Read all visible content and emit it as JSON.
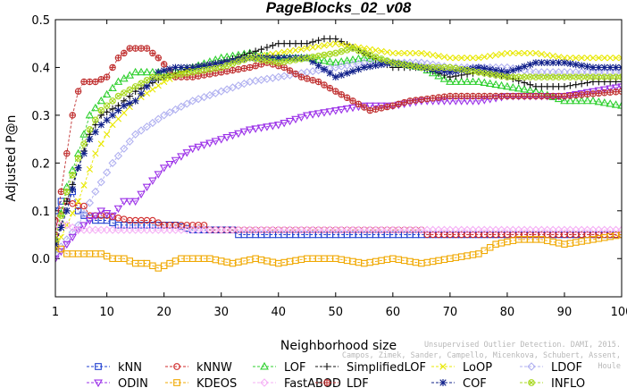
{
  "credit_lines": [
    "Unsupervised Outlier Detection. DAMI, 2015.",
    "Campos, Zimek, Sander, Campello, Micenkova, Schubert, Assent, Houle"
  ],
  "chart_data": {
    "type": "line",
    "title": "PageBlocks_02_v08",
    "xlabel": "Neighborhood size",
    "ylabel": "Adjusted P@n",
    "xlim": [
      1,
      100
    ],
    "ylim": [
      -0.08,
      0.5
    ],
    "xticks": [
      1,
      10,
      20,
      30,
      40,
      50,
      60,
      70,
      80,
      90,
      100
    ],
    "yticks": [
      0.0,
      0.1,
      0.2,
      0.3,
      0.4,
      0.5
    ],
    "ytick_labels": [
      "0.0",
      "0.1",
      "0.2",
      "0.3",
      "0.4",
      "0.5"
    ],
    "legend_position": "bottom",
    "series": [
      {
        "name": "kNN",
        "color": "#1f3fd0",
        "marker": "square",
        "points": [
          [
            1,
            0.1
          ],
          [
            2,
            0.12
          ],
          [
            3,
            0.12
          ],
          [
            4,
            0.14
          ],
          [
            5,
            0.1
          ],
          [
            6,
            0.09
          ],
          [
            8,
            0.08
          ],
          [
            10,
            0.08
          ],
          [
            12,
            0.07
          ],
          [
            20,
            0.07
          ],
          [
            22,
            0.07
          ],
          [
            25,
            0.06
          ],
          [
            32,
            0.06
          ],
          [
            33,
            0.05
          ],
          [
            100,
            0.05
          ]
        ]
      },
      {
        "name": "kNNW",
        "color": "#d02a2a",
        "marker": "circle",
        "points": [
          [
            1,
            0.08
          ],
          [
            3,
            0.12
          ],
          [
            5,
            0.11
          ],
          [
            6,
            0.11
          ],
          [
            7,
            0.09
          ],
          [
            10,
            0.09
          ],
          [
            14,
            0.08
          ],
          [
            18,
            0.08
          ],
          [
            20,
            0.07
          ],
          [
            27,
            0.07
          ],
          [
            28,
            0.06
          ],
          [
            65,
            0.06
          ],
          [
            66,
            0.05
          ],
          [
            100,
            0.05
          ]
        ]
      },
      {
        "name": "LOF",
        "color": "#2fd02f",
        "marker": "triangle-up",
        "points": [
          [
            1,
            0.04
          ],
          [
            3,
            0.15
          ],
          [
            5,
            0.22
          ],
          [
            7,
            0.3
          ],
          [
            9,
            0.33
          ],
          [
            12,
            0.37
          ],
          [
            15,
            0.39
          ],
          [
            20,
            0.39
          ],
          [
            25,
            0.4
          ],
          [
            30,
            0.42
          ],
          [
            35,
            0.43
          ],
          [
            40,
            0.42
          ],
          [
            45,
            0.42
          ],
          [
            50,
            0.41
          ],
          [
            55,
            0.42
          ],
          [
            60,
            0.41
          ],
          [
            65,
            0.4
          ],
          [
            70,
            0.37
          ],
          [
            75,
            0.37
          ],
          [
            80,
            0.36
          ],
          [
            85,
            0.35
          ],
          [
            90,
            0.33
          ],
          [
            95,
            0.33
          ],
          [
            100,
            0.32
          ]
        ]
      },
      {
        "name": "SimplifiedLOF",
        "color": "#111111",
        "marker": "plus",
        "points": [
          [
            1,
            0.02
          ],
          [
            3,
            0.12
          ],
          [
            5,
            0.19
          ],
          [
            7,
            0.26
          ],
          [
            9,
            0.3
          ],
          [
            12,
            0.32
          ],
          [
            15,
            0.35
          ],
          [
            20,
            0.38
          ],
          [
            25,
            0.4
          ],
          [
            30,
            0.41
          ],
          [
            35,
            0.43
          ],
          [
            40,
            0.45
          ],
          [
            45,
            0.45
          ],
          [
            48,
            0.46
          ],
          [
            50,
            0.46
          ],
          [
            55,
            0.43
          ],
          [
            60,
            0.4
          ],
          [
            65,
            0.4
          ],
          [
            70,
            0.38
          ],
          [
            75,
            0.39
          ],
          [
            80,
            0.38
          ],
          [
            85,
            0.36
          ],
          [
            90,
            0.36
          ],
          [
            95,
            0.37
          ],
          [
            100,
            0.37
          ]
        ]
      },
      {
        "name": "LoOP",
        "color": "#e8e800",
        "marker": "cross",
        "points": [
          [
            1,
            0.02
          ],
          [
            5,
            0.12
          ],
          [
            8,
            0.22
          ],
          [
            11,
            0.28
          ],
          [
            15,
            0.33
          ],
          [
            20,
            0.37
          ],
          [
            25,
            0.4
          ],
          [
            30,
            0.41
          ],
          [
            35,
            0.42
          ],
          [
            40,
            0.43
          ],
          [
            45,
            0.44
          ],
          [
            50,
            0.45
          ],
          [
            55,
            0.44
          ],
          [
            60,
            0.43
          ],
          [
            65,
            0.43
          ],
          [
            70,
            0.42
          ],
          [
            75,
            0.42
          ],
          [
            80,
            0.43
          ],
          [
            85,
            0.43
          ],
          [
            90,
            0.42
          ],
          [
            95,
            0.42
          ],
          [
            100,
            0.42
          ]
        ]
      },
      {
        "name": "LDOF",
        "color": "#b0b0f0",
        "marker": "diamond",
        "points": [
          [
            1,
            0.01
          ],
          [
            5,
            0.07
          ],
          [
            8,
            0.14
          ],
          [
            11,
            0.2
          ],
          [
            15,
            0.26
          ],
          [
            20,
            0.3
          ],
          [
            25,
            0.33
          ],
          [
            30,
            0.35
          ],
          [
            35,
            0.37
          ],
          [
            40,
            0.38
          ],
          [
            45,
            0.39
          ],
          [
            50,
            0.4
          ],
          [
            55,
            0.41
          ],
          [
            60,
            0.41
          ],
          [
            65,
            0.41
          ],
          [
            70,
            0.4
          ],
          [
            75,
            0.4
          ],
          [
            80,
            0.4
          ],
          [
            85,
            0.39
          ],
          [
            90,
            0.39
          ],
          [
            95,
            0.39
          ],
          [
            100,
            0.39
          ]
        ]
      },
      {
        "name": "ODIN",
        "color": "#9b30e8",
        "marker": "triangle-down",
        "points": [
          [
            1,
            0.0
          ],
          [
            3,
            0.03
          ],
          [
            5,
            0.06
          ],
          [
            7,
            0.08
          ],
          [
            9,
            0.1
          ],
          [
            11,
            0.09
          ],
          [
            13,
            0.12
          ],
          [
            15,
            0.12
          ],
          [
            17,
            0.15
          ],
          [
            20,
            0.19
          ],
          [
            25,
            0.23
          ],
          [
            30,
            0.25
          ],
          [
            35,
            0.27
          ],
          [
            40,
            0.28
          ],
          [
            45,
            0.3
          ],
          [
            50,
            0.31
          ],
          [
            55,
            0.32
          ],
          [
            60,
            0.32
          ],
          [
            65,
            0.33
          ],
          [
            70,
            0.33
          ],
          [
            75,
            0.33
          ],
          [
            80,
            0.34
          ],
          [
            85,
            0.34
          ],
          [
            90,
            0.34
          ],
          [
            95,
            0.35
          ],
          [
            100,
            0.36
          ]
        ]
      },
      {
        "name": "KDEOS",
        "color": "#f0a800",
        "marker": "square",
        "points": [
          [
            1,
            0.03
          ],
          [
            3,
            0.01
          ],
          [
            5,
            0.01
          ],
          [
            7,
            0.01
          ],
          [
            9,
            0.01
          ],
          [
            11,
            0.0
          ],
          [
            13,
            0.0
          ],
          [
            15,
            -0.01
          ],
          [
            17,
            -0.01
          ],
          [
            19,
            -0.02
          ],
          [
            21,
            -0.01
          ],
          [
            23,
            0.0
          ],
          [
            28,
            0.0
          ],
          [
            32,
            -0.01
          ],
          [
            36,
            0.0
          ],
          [
            40,
            -0.01
          ],
          [
            45,
            0.0
          ],
          [
            50,
            0.0
          ],
          [
            55,
            -0.01
          ],
          [
            60,
            0.0
          ],
          [
            65,
            -0.01
          ],
          [
            70,
            0.0
          ],
          [
            75,
            0.01
          ],
          [
            78,
            0.03
          ],
          [
            82,
            0.04
          ],
          [
            86,
            0.04
          ],
          [
            90,
            0.03
          ],
          [
            95,
            0.04
          ],
          [
            100,
            0.05
          ]
        ]
      },
      {
        "name": "FastABOD",
        "color": "#f5b0f5",
        "marker": "diamond",
        "points": [
          [
            1,
            0.07
          ],
          [
            3,
            0.07
          ],
          [
            5,
            0.06
          ],
          [
            8,
            0.06
          ],
          [
            12,
            0.06
          ],
          [
            20,
            0.06
          ],
          [
            40,
            0.06
          ],
          [
            60,
            0.06
          ],
          [
            80,
            0.06
          ],
          [
            100,
            0.06
          ]
        ]
      },
      {
        "name": "LDF",
        "color": "#c03030",
        "marker": "circle-plus",
        "points": [
          [
            1,
            0.05
          ],
          [
            2,
            0.14
          ],
          [
            3,
            0.22
          ],
          [
            4,
            0.3
          ],
          [
            5,
            0.35
          ],
          [
            6,
            0.37
          ],
          [
            8,
            0.37
          ],
          [
            10,
            0.38
          ],
          [
            12,
            0.42
          ],
          [
            14,
            0.44
          ],
          [
            17,
            0.44
          ],
          [
            19,
            0.42
          ],
          [
            22,
            0.38
          ],
          [
            25,
            0.38
          ],
          [
            30,
            0.39
          ],
          [
            35,
            0.4
          ],
          [
            38,
            0.41
          ],
          [
            41,
            0.4
          ],
          [
            44,
            0.38
          ],
          [
            47,
            0.37
          ],
          [
            50,
            0.35
          ],
          [
            53,
            0.33
          ],
          [
            56,
            0.31
          ],
          [
            60,
            0.32
          ],
          [
            63,
            0.33
          ],
          [
            70,
            0.34
          ],
          [
            80,
            0.34
          ],
          [
            90,
            0.34
          ],
          [
            100,
            0.35
          ]
        ]
      },
      {
        "name": "COF",
        "color": "#10208a",
        "marker": "asterisk",
        "points": [
          [
            1,
            0.03
          ],
          [
            3,
            0.1
          ],
          [
            5,
            0.19
          ],
          [
            7,
            0.25
          ],
          [
            9,
            0.28
          ],
          [
            11,
            0.3
          ],
          [
            13,
            0.32
          ],
          [
            15,
            0.33
          ],
          [
            17,
            0.36
          ],
          [
            19,
            0.39
          ],
          [
            22,
            0.4
          ],
          [
            25,
            0.4
          ],
          [
            30,
            0.41
          ],
          [
            35,
            0.42
          ],
          [
            40,
            0.42
          ],
          [
            45,
            0.42
          ],
          [
            50,
            0.38
          ],
          [
            55,
            0.4
          ],
          [
            60,
            0.41
          ],
          [
            65,
            0.4
          ],
          [
            70,
            0.39
          ],
          [
            75,
            0.4
          ],
          [
            80,
            0.39
          ],
          [
            85,
            0.41
          ],
          [
            90,
            0.41
          ],
          [
            95,
            0.4
          ],
          [
            100,
            0.4
          ]
        ]
      },
      {
        "name": "INFLO",
        "color": "#a8d820",
        "marker": "circle-x",
        "points": [
          [
            1,
            0.04
          ],
          [
            3,
            0.14
          ],
          [
            5,
            0.21
          ],
          [
            7,
            0.27
          ],
          [
            9,
            0.31
          ],
          [
            12,
            0.34
          ],
          [
            15,
            0.36
          ],
          [
            18,
            0.38
          ],
          [
            20,
            0.38
          ],
          [
            25,
            0.39
          ],
          [
            30,
            0.4
          ],
          [
            35,
            0.42
          ],
          [
            40,
            0.41
          ],
          [
            45,
            0.42
          ],
          [
            50,
            0.43
          ],
          [
            53,
            0.44
          ],
          [
            55,
            0.43
          ],
          [
            60,
            0.41
          ],
          [
            65,
            0.4
          ],
          [
            70,
            0.4
          ],
          [
            75,
            0.39
          ],
          [
            80,
            0.38
          ],
          [
            85,
            0.38
          ],
          [
            90,
            0.38
          ],
          [
            95,
            0.38
          ],
          [
            100,
            0.38
          ]
        ]
      }
    ]
  }
}
